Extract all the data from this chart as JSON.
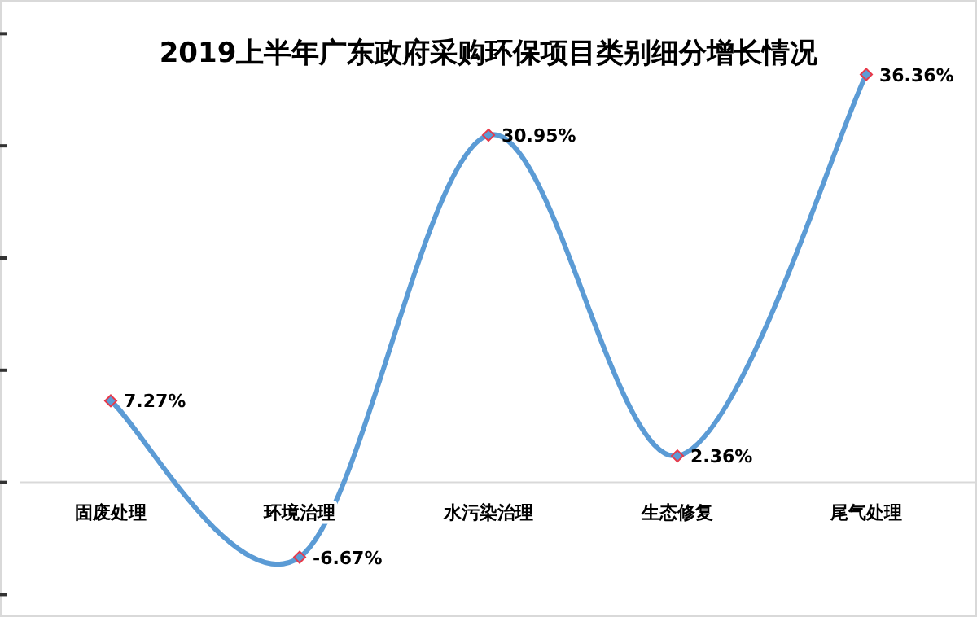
{
  "chart_data": {
    "type": "line",
    "title": "2019上半年广东政府采购环保项目类别细分增长情况",
    "categories": [
      "固废处理",
      "环境治理",
      "水污染治理",
      "生态修复",
      "尾气处理"
    ],
    "values": [
      7.27,
      -6.67,
      30.95,
      2.36,
      36.36
    ],
    "value_labels": [
      "7.27%",
      "-6.67%",
      "30.95%",
      "2.36%",
      "36.36%"
    ],
    "color": "#5b9bd5",
    "marker": "diamond",
    "line_style": "solid",
    "ylim": [
      -12,
      43
    ],
    "yticks": [
      {
        "value": -10,
        "label": null
      },
      {
        "value": 0,
        "label": null
      },
      {
        "value": 10,
        "label": null
      },
      {
        "value": 20,
        "label": null
      },
      {
        "value": 30,
        "label": null
      },
      {
        "value": 40,
        "label": null
      }
    ]
  }
}
